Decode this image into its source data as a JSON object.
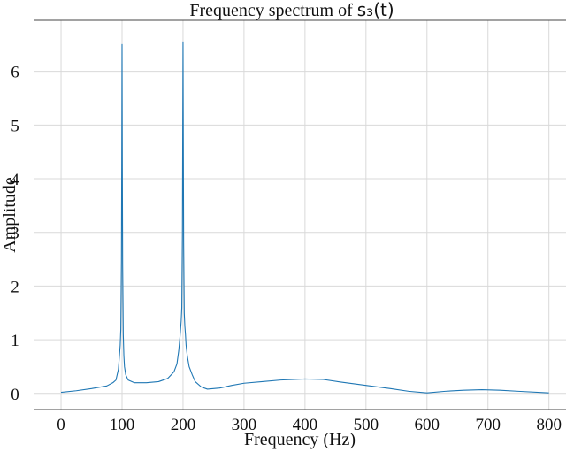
{
  "chart_data": {
    "type": "line",
    "title_prefix": "Frequency spectrum of ",
    "title_math": "s₃(t)",
    "xlabel": "Frequency (Hz)",
    "ylabel": "Amplitude",
    "xlim": [
      -45,
      828
    ],
    "ylim": [
      -0.3,
      6.95
    ],
    "xticks": [
      0,
      100,
      200,
      300,
      400,
      500,
      600,
      700,
      800
    ],
    "yticks": [
      0,
      1,
      2,
      3,
      4,
      5,
      6
    ],
    "grid": true,
    "line_color": "#1f77b4",
    "series": [
      {
        "x": [
          0,
          25,
          50,
          75,
          85,
          90,
          94,
          96,
          97,
          98,
          99,
          99.5,
          100,
          100.5,
          101,
          102,
          103,
          104,
          106,
          110,
          120,
          140,
          160,
          175,
          185,
          190,
          193,
          195,
          196,
          197,
          198,
          199,
          199.5,
          200,
          200.5,
          201,
          202,
          203,
          204,
          205,
          207,
          210,
          215,
          220,
          230,
          240,
          260,
          280,
          300,
          330,
          360,
          400,
          430,
          460,
          500,
          540,
          570,
          600,
          630,
          660,
          690,
          720,
          750,
          800
        ],
        "y": [
          0.02,
          0.05,
          0.09,
          0.14,
          0.2,
          0.25,
          0.45,
          0.75,
          0.9,
          1.2,
          2.5,
          4.2,
          6.5,
          4.2,
          2.4,
          1.1,
          0.7,
          0.5,
          0.35,
          0.25,
          0.2,
          0.2,
          0.22,
          0.28,
          0.4,
          0.55,
          0.8,
          1.05,
          1.2,
          1.35,
          1.6,
          3.0,
          4.8,
          6.55,
          4.6,
          2.8,
          1.5,
          1.25,
          1.1,
          0.9,
          0.7,
          0.5,
          0.35,
          0.22,
          0.12,
          0.08,
          0.1,
          0.15,
          0.19,
          0.22,
          0.25,
          0.27,
          0.26,
          0.21,
          0.15,
          0.09,
          0.04,
          0.01,
          0.04,
          0.06,
          0.07,
          0.06,
          0.04,
          0.01
        ]
      }
    ]
  }
}
